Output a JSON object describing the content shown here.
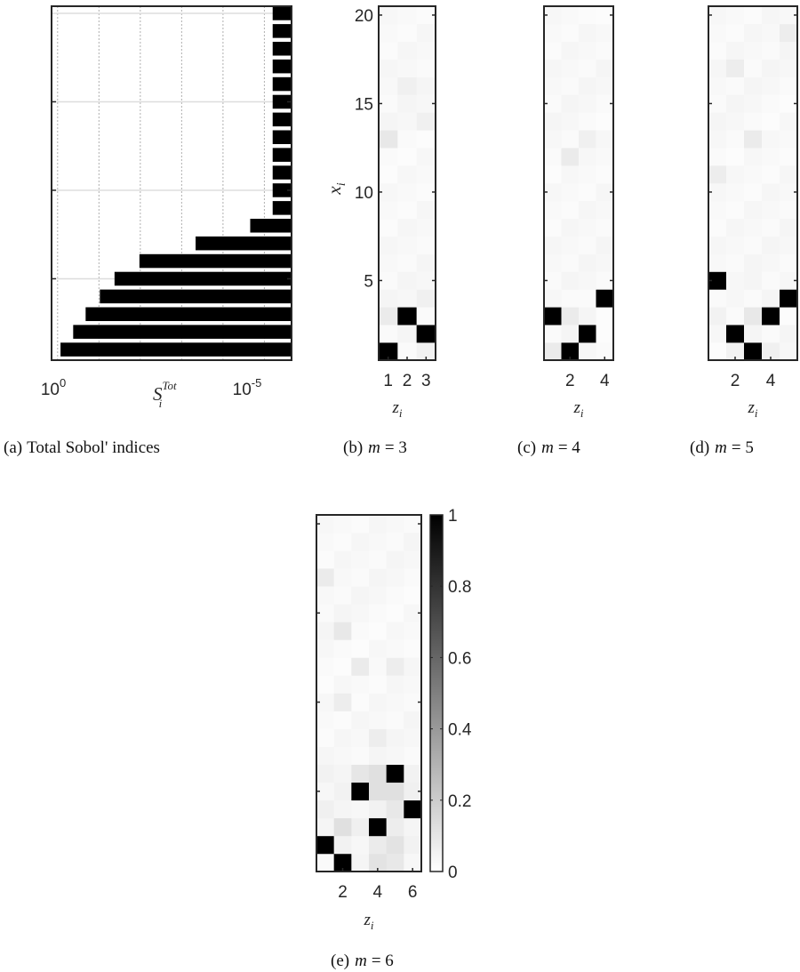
{
  "chart_data": [
    {
      "id": "a",
      "type": "bar",
      "orientation": "horizontal",
      "caption_prefix": "(a)",
      "caption_text": "Total Sobol' indices",
      "xlabel_main": "S",
      "xlabel_sub": "i",
      "xlabel_sup": "Tot",
      "x_tick_labels": [
        {
          "value": 1,
          "base": "10",
          "exp": "0"
        },
        {
          "value": 1e-05,
          "base": "10",
          "exp": "-5"
        }
      ],
      "x_scale": "log",
      "x_reversed": true,
      "xlim": [
        1.4,
        2.2e-06
      ],
      "y_ticks": [
        5,
        10,
        15
      ],
      "ylim": [
        0.4,
        20.4
      ],
      "grid": true,
      "categories": [
        1,
        2,
        3,
        4,
        5,
        6,
        7,
        8,
        9,
        10,
        11,
        12,
        13,
        14,
        15,
        16,
        17,
        18,
        19,
        20
      ],
      "values": [
        0.85,
        0.42,
        0.21,
        0.095,
        0.042,
        0.0105,
        0.00046,
        2.2e-05,
        6.3e-06,
        6.3e-06,
        6.3e-06,
        6.3e-06,
        6.3e-06,
        6.3e-06,
        6.3e-06,
        6.3e-06,
        6.3e-06,
        6.3e-06,
        6.3e-06,
        6.3e-06
      ],
      "bar_color": "#000000"
    },
    {
      "id": "b",
      "type": "heatmap",
      "caption_prefix": "(b)",
      "caption_var": "m",
      "caption_value": "= 3",
      "xlabel_main": "z",
      "xlabel_sub": "i",
      "ylabel_main": "x",
      "ylabel_sub": "i",
      "x_ticks": [
        1,
        2,
        3
      ],
      "y_ticks": [
        5,
        10,
        15,
        20
      ],
      "cols": 3,
      "rows": 20,
      "cells": [
        {
          "x": 1,
          "y": 1,
          "v": 1.0
        },
        {
          "x": 2,
          "y": 1,
          "v": 0.02
        },
        {
          "x": 3,
          "y": 1,
          "v": 0.05
        },
        {
          "x": 1,
          "y": 2,
          "v": 0.02
        },
        {
          "x": 2,
          "y": 2,
          "v": 0.04
        },
        {
          "x": 3,
          "y": 2,
          "v": 1.0
        },
        {
          "x": 1,
          "y": 3,
          "v": 0.08
        },
        {
          "x": 2,
          "y": 3,
          "v": 1.0
        },
        {
          "x": 3,
          "y": 3,
          "v": 0.02
        },
        {
          "x": 1,
          "y": 4,
          "v": 0.04
        },
        {
          "x": 2,
          "y": 4,
          "v": 0.03
        },
        {
          "x": 3,
          "y": 4,
          "v": 0.06
        },
        {
          "x": 1,
          "y": 13,
          "v": 0.09
        },
        {
          "x": 2,
          "y": 16,
          "v": 0.06
        },
        {
          "x": 3,
          "y": 14,
          "v": 0.06
        }
      ],
      "background_value": 0.03
    },
    {
      "id": "c",
      "type": "heatmap",
      "caption_prefix": "(c)",
      "caption_var": "m",
      "caption_value": "= 4",
      "xlabel_main": "z",
      "xlabel_sub": "i",
      "x_ticks": [
        2,
        4
      ],
      "cols": 4,
      "rows": 20,
      "cells": [
        {
          "x": 1,
          "y": 1,
          "v": 0.08
        },
        {
          "x": 2,
          "y": 1,
          "v": 1.0
        },
        {
          "x": 3,
          "y": 1,
          "v": 0.03
        },
        {
          "x": 4,
          "y": 1,
          "v": 0.02
        },
        {
          "x": 1,
          "y": 2,
          "v": 0.02
        },
        {
          "x": 2,
          "y": 2,
          "v": 0.04
        },
        {
          "x": 3,
          "y": 2,
          "v": 1.0
        },
        {
          "x": 4,
          "y": 2,
          "v": 0.01
        },
        {
          "x": 1,
          "y": 3,
          "v": 1.0
        },
        {
          "x": 2,
          "y": 3,
          "v": 0.08
        },
        {
          "x": 3,
          "y": 3,
          "v": 0.04
        },
        {
          "x": 4,
          "y": 3,
          "v": 0.01
        },
        {
          "x": 1,
          "y": 4,
          "v": 0.03
        },
        {
          "x": 2,
          "y": 4,
          "v": 0.02
        },
        {
          "x": 3,
          "y": 4,
          "v": 0.02
        },
        {
          "x": 4,
          "y": 4,
          "v": 1.0
        },
        {
          "x": 2,
          "y": 12,
          "v": 0.08
        },
        {
          "x": 3,
          "y": 13,
          "v": 0.06
        },
        {
          "x": 4,
          "y": 20,
          "v": 0.01
        }
      ],
      "background_value": 0.03
    },
    {
      "id": "d",
      "type": "heatmap",
      "caption_prefix": "(d)",
      "caption_var": "m",
      "caption_value": "= 5",
      "xlabel_main": "z",
      "xlabel_sub": "i",
      "x_ticks": [
        2,
        4
      ],
      "cols": 5,
      "rows": 20,
      "cells": [
        {
          "x": 1,
          "y": 1,
          "v": 0.01
        },
        {
          "x": 2,
          "y": 1,
          "v": 0.05
        },
        {
          "x": 3,
          "y": 1,
          "v": 1.0
        },
        {
          "x": 4,
          "y": 1,
          "v": 0.06
        },
        {
          "x": 5,
          "y": 1,
          "v": 0.03
        },
        {
          "x": 1,
          "y": 2,
          "v": 0.03
        },
        {
          "x": 2,
          "y": 2,
          "v": 1.0
        },
        {
          "x": 3,
          "y": 2,
          "v": 0.04
        },
        {
          "x": 4,
          "y": 2,
          "v": 0.02
        },
        {
          "x": 5,
          "y": 2,
          "v": 0.04
        },
        {
          "x": 1,
          "y": 3,
          "v": 0.05
        },
        {
          "x": 2,
          "y": 3,
          "v": 0.02
        },
        {
          "x": 3,
          "y": 3,
          "v": 0.09
        },
        {
          "x": 4,
          "y": 3,
          "v": 1.0
        },
        {
          "x": 5,
          "y": 3,
          "v": 0.01
        },
        {
          "x": 1,
          "y": 4,
          "v": 0.02
        },
        {
          "x": 2,
          "y": 4,
          "v": 0.03
        },
        {
          "x": 3,
          "y": 4,
          "v": 0.02
        },
        {
          "x": 4,
          "y": 4,
          "v": 0.04
        },
        {
          "x": 5,
          "y": 4,
          "v": 1.0
        },
        {
          "x": 1,
          "y": 5,
          "v": 1.0
        },
        {
          "x": 2,
          "y": 5,
          "v": 0.03
        },
        {
          "x": 3,
          "y": 5,
          "v": 0.04
        },
        {
          "x": 4,
          "y": 5,
          "v": 0.02
        },
        {
          "x": 5,
          "y": 5,
          "v": 0.03
        },
        {
          "x": 3,
          "y": 13,
          "v": 0.08
        },
        {
          "x": 1,
          "y": 11,
          "v": 0.07
        },
        {
          "x": 2,
          "y": 17,
          "v": 0.07
        },
        {
          "x": 5,
          "y": 19,
          "v": 0.07
        }
      ],
      "background_value": 0.03
    },
    {
      "id": "e",
      "type": "heatmap",
      "caption_prefix": "(e)",
      "caption_var": "m",
      "caption_value": "= 6",
      "xlabel_main": "z",
      "xlabel_sub": "i",
      "x_ticks": [
        2,
        4,
        6
      ],
      "cols": 6,
      "rows": 20,
      "cells": [
        {
          "x": 1,
          "y": 1,
          "v": 0.02
        },
        {
          "x": 2,
          "y": 1,
          "v": 1.0
        },
        {
          "x": 3,
          "y": 1,
          "v": 0.04
        },
        {
          "x": 4,
          "y": 1,
          "v": 0.11
        },
        {
          "x": 5,
          "y": 1,
          "v": 0.09
        },
        {
          "x": 6,
          "y": 1,
          "v": 0.03
        },
        {
          "x": 1,
          "y": 2,
          "v": 1.0
        },
        {
          "x": 2,
          "y": 2,
          "v": 0.05
        },
        {
          "x": 3,
          "y": 2,
          "v": 0.03
        },
        {
          "x": 4,
          "y": 2,
          "v": 0.08
        },
        {
          "x": 5,
          "y": 2,
          "v": 0.11
        },
        {
          "x": 6,
          "y": 2,
          "v": 0.05
        },
        {
          "x": 1,
          "y": 3,
          "v": 0.04
        },
        {
          "x": 2,
          "y": 3,
          "v": 0.12
        },
        {
          "x": 3,
          "y": 3,
          "v": 0.06
        },
        {
          "x": 4,
          "y": 3,
          "v": 1.0
        },
        {
          "x": 5,
          "y": 3,
          "v": 0.07
        },
        {
          "x": 6,
          "y": 3,
          "v": 0.04
        },
        {
          "x": 1,
          "y": 4,
          "v": 0.06
        },
        {
          "x": 2,
          "y": 4,
          "v": 0.04
        },
        {
          "x": 3,
          "y": 4,
          "v": 0.03
        },
        {
          "x": 4,
          "y": 4,
          "v": 0.05
        },
        {
          "x": 5,
          "y": 4,
          "v": 0.09
        },
        {
          "x": 6,
          "y": 4,
          "v": 1.0
        },
        {
          "x": 1,
          "y": 5,
          "v": 0.03
        },
        {
          "x": 2,
          "y": 5,
          "v": 0.05
        },
        {
          "x": 3,
          "y": 5,
          "v": 1.0
        },
        {
          "x": 4,
          "y": 5,
          "v": 0.12
        },
        {
          "x": 5,
          "y": 5,
          "v": 0.12
        },
        {
          "x": 6,
          "y": 5,
          "v": 0.06
        },
        {
          "x": 1,
          "y": 6,
          "v": 0.05
        },
        {
          "x": 2,
          "y": 6,
          "v": 0.04
        },
        {
          "x": 3,
          "y": 6,
          "v": 0.1
        },
        {
          "x": 4,
          "y": 6,
          "v": 0.12
        },
        {
          "x": 5,
          "y": 6,
          "v": 1.0
        },
        {
          "x": 6,
          "y": 6,
          "v": 0.05
        },
        {
          "x": 2,
          "y": 10,
          "v": 0.07
        },
        {
          "x": 3,
          "y": 12,
          "v": 0.08
        },
        {
          "x": 2,
          "y": 14,
          "v": 0.09
        },
        {
          "x": 5,
          "y": 12,
          "v": 0.07
        },
        {
          "x": 1,
          "y": 17,
          "v": 0.08
        },
        {
          "x": 4,
          "y": 8,
          "v": 0.07
        }
      ],
      "background_value": 0.03
    }
  ],
  "colorbar": {
    "ticks": [
      "0",
      "0.2",
      "0.4",
      "0.6",
      "0.8",
      "1"
    ],
    "range": [
      0,
      1
    ],
    "colormap": [
      "#ffffff",
      "#000000"
    ]
  }
}
